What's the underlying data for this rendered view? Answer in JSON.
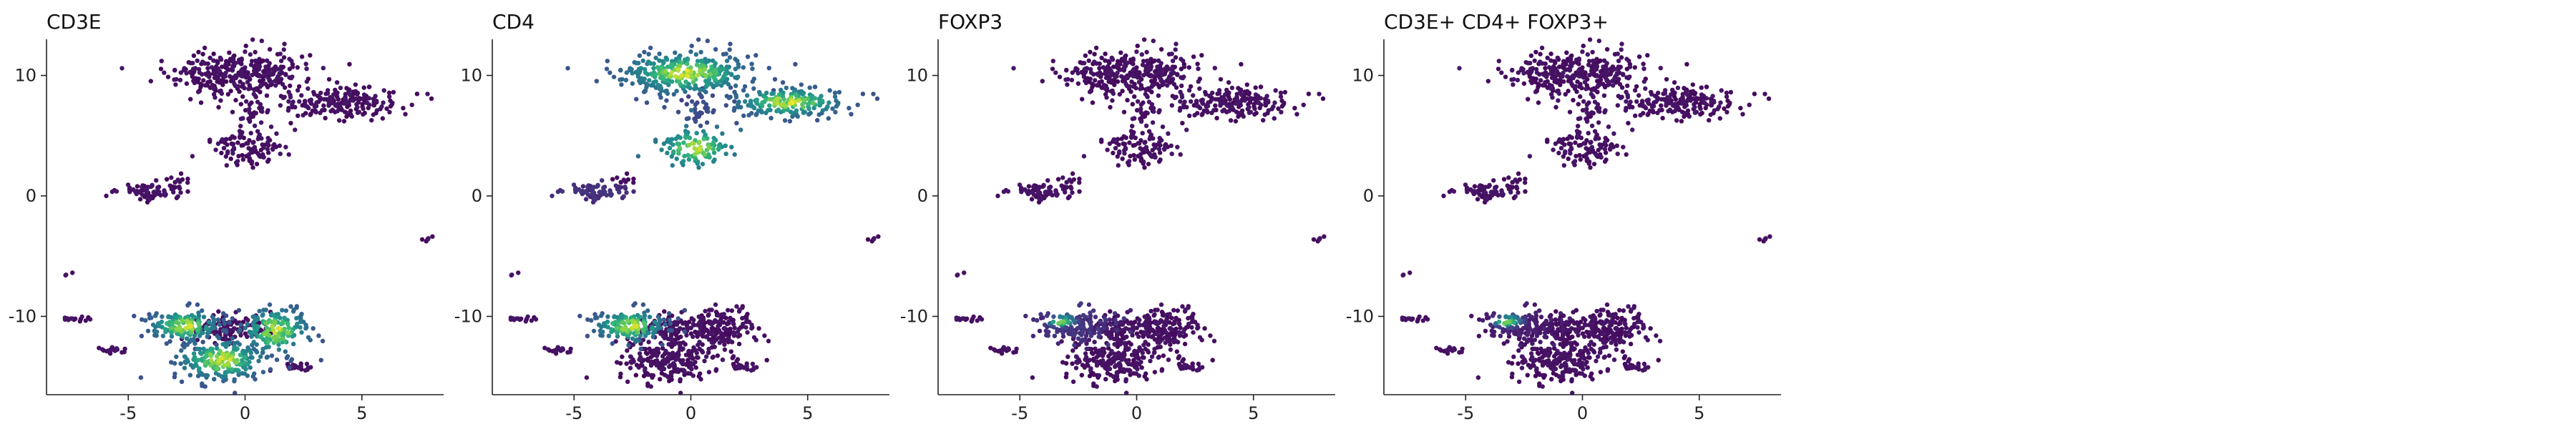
{
  "figure": {
    "background": "#ffffff"
  },
  "chart_data": [
    {
      "type": "scatter",
      "title": "CD3E",
      "xlabel": "",
      "ylabel": "",
      "xlim": [
        -8.5,
        8.5
      ],
      "ylim": [
        -16.5,
        13
      ],
      "xticks": [
        -5,
        0,
        5
      ],
      "yticks": [
        -10,
        0,
        10
      ],
      "colormap": "viridis",
      "grid": false,
      "legend": "none",
      "highlight": [
        "lower-center",
        "lower-left",
        "lower-right"
      ]
    },
    {
      "type": "scatter",
      "title": "CD4",
      "xlabel": "",
      "ylabel": "",
      "xlim": [
        -8.5,
        8.5
      ],
      "ylim": [
        -16.5,
        13
      ],
      "xticks": [
        -5,
        0,
        5
      ],
      "yticks": [
        -10,
        0,
        10
      ],
      "colormap": "viridis",
      "grid": false,
      "legend": "none",
      "highlight": [
        "top-left",
        "top-right",
        "middle",
        "lower-left"
      ]
    },
    {
      "type": "scatter",
      "title": "FOXP3",
      "xlabel": "",
      "ylabel": "",
      "xlim": [
        -8.5,
        8.5
      ],
      "ylim": [
        -16.5,
        13
      ],
      "xticks": [
        -5,
        0,
        5
      ],
      "yticks": [
        -10,
        0,
        10
      ],
      "colormap": "viridis",
      "grid": false,
      "legend": "none",
      "highlight": [
        "lower-left-tip"
      ]
    },
    {
      "type": "scatter",
      "title": "CD3E+ CD4+ FOXP3+",
      "xlabel": "",
      "ylabel": "",
      "xlim": [
        -8.5,
        8.5
      ],
      "ylim": [
        -16.5,
        13
      ],
      "xticks": [
        -5,
        0,
        5
      ],
      "yticks": [
        -10,
        0,
        10
      ],
      "colormap": "viridis",
      "grid": false,
      "legend": "none",
      "highlight": [
        "lower-left-tip"
      ]
    }
  ],
  "clusters": [
    {
      "name": "top-left",
      "cx": -0.2,
      "cy": 10.2,
      "sx": 1.45,
      "sy": 0.95,
      "n": 320
    },
    {
      "name": "top-right",
      "cx": 4.2,
      "cy": 7.8,
      "sx": 1.25,
      "sy": 0.65,
      "n": 190
    },
    {
      "name": "upper-strand",
      "cx": 0.4,
      "cy": 7.2,
      "sx": 0.35,
      "sy": 0.9,
      "n": 40
    },
    {
      "name": "middle",
      "cx": 0.2,
      "cy": 4.0,
      "sx": 0.75,
      "sy": 0.8,
      "n": 110
    },
    {
      "name": "left-small",
      "cx": -4.1,
      "cy": 0.3,
      "sx": 0.8,
      "sy": 0.35,
      "n": 70
    },
    {
      "name": "left-tail",
      "cx": -2.9,
      "cy": 1.2,
      "sx": 0.35,
      "sy": 0.25,
      "n": 10
    },
    {
      "name": "far-right",
      "cx": 7.8,
      "cy": -3.6,
      "sx": 0.12,
      "sy": 0.12,
      "n": 6
    },
    {
      "name": "lower-left",
      "cx": -2.6,
      "cy": -10.8,
      "sx": 0.8,
      "sy": 0.7,
      "n": 160
    },
    {
      "name": "lower-center",
      "cx": -1.0,
      "cy": -13.6,
      "sx": 1.0,
      "sy": 0.9,
      "n": 210
    },
    {
      "name": "lower-right",
      "cx": 1.3,
      "cy": -11.2,
      "sx": 0.75,
      "sy": 1.05,
      "n": 170
    },
    {
      "name": "lower-midline",
      "cx": -0.6,
      "cy": -11.0,
      "sx": 0.9,
      "sy": 0.55,
      "n": 110
    },
    {
      "name": "lower-far-right",
      "cx": 2.2,
      "cy": -14.3,
      "sx": 0.35,
      "sy": 0.2,
      "n": 25
    },
    {
      "name": "outlier-left",
      "cx": -7.6,
      "cy": -6.5,
      "sx": 0.08,
      "sy": 0.08,
      "n": 3
    },
    {
      "name": "tiny-left",
      "cx": -7.2,
      "cy": -10.2,
      "sx": 0.35,
      "sy": 0.15,
      "n": 14
    },
    {
      "name": "small-lower",
      "cx": -5.7,
      "cy": -12.8,
      "sx": 0.35,
      "sy": 0.18,
      "n": 18
    }
  ]
}
